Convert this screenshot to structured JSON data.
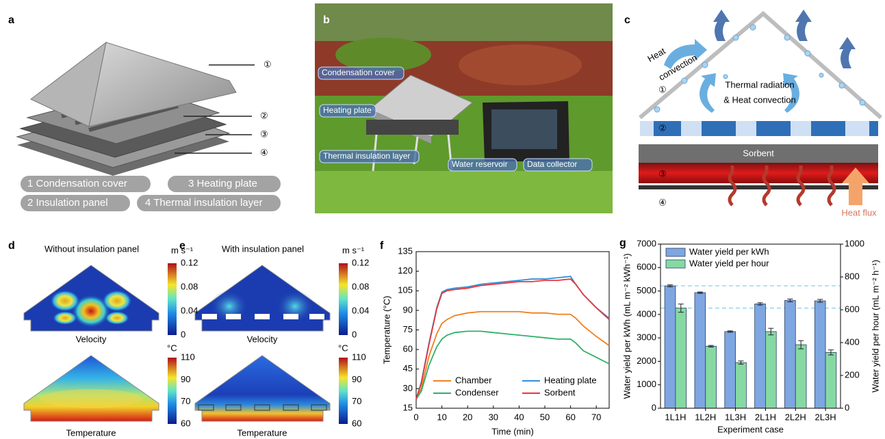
{
  "panel_a": {
    "label": "a",
    "callouts": [
      "①",
      "②",
      "③",
      "④"
    ],
    "legend": [
      "1 Condensation cover",
      "3 Heating plate",
      "2 Insulation panel",
      "4 Thermal insulation layer"
    ]
  },
  "panel_b": {
    "label": "b",
    "annotations": [
      "Condensation cover",
      "Heating plate",
      "Thermal insulation layer",
      "Water reservoir",
      "Data collector"
    ]
  },
  "panel_c": {
    "label": "c",
    "heat_convection": [
      "Heat",
      "convection"
    ],
    "thermal_radiation": [
      "Thermal radiation",
      "& Heat convection"
    ],
    "sorbent": "Sorbent",
    "heat_flux": "Heat flux",
    "layers": [
      "①",
      "②",
      "③",
      "④"
    ]
  },
  "panel_d": {
    "label": "d",
    "title": "Without insulation panel",
    "velocity_label": "Velocity",
    "temperature_label": "Temperature",
    "velocity_unit": "m s⁻¹",
    "temperature_unit": "°C",
    "velocity_ticks": [
      0.12,
      0.08,
      0.04,
      0
    ],
    "temperature_ticks": [
      110,
      90,
      70,
      60
    ]
  },
  "panel_e": {
    "label": "e",
    "title": "With insulation panel",
    "velocity_label": "Velocity",
    "temperature_label": "Temperature",
    "velocity_unit": "m s⁻¹",
    "temperature_unit": "°C",
    "velocity_ticks": [
      0.12,
      0.08,
      0.04,
      0
    ],
    "temperature_ticks": [
      110,
      90,
      70,
      60
    ]
  },
  "chart_data": [
    {
      "type": "line",
      "label": "f",
      "x_label": "Time (min)",
      "y_label": "Temperature (°C)",
      "x": [
        0,
        2,
        5,
        8,
        10,
        12,
        15,
        20,
        25,
        30,
        35,
        40,
        45,
        50,
        55,
        60,
        62,
        65,
        70,
        75
      ],
      "series": [
        {
          "name": "Chamber",
          "color": "#f07f1e",
          "values": [
            22,
            30,
            55,
            72,
            80,
            83,
            86,
            88,
            89,
            89,
            89,
            89,
            88,
            88,
            87,
            87,
            84,
            78,
            70,
            63
          ]
        },
        {
          "name": "Heating plate",
          "color": "#2f8fd8",
          "values": [
            22,
            35,
            65,
            92,
            104,
            106,
            107,
            108,
            110,
            111,
            112,
            113,
            114,
            114,
            115,
            116,
            110,
            102,
            92,
            84
          ]
        },
        {
          "name": "Condenser",
          "color": "#2fb067",
          "values": [
            22,
            28,
            48,
            62,
            68,
            71,
            73,
            74,
            74,
            73,
            72,
            71,
            70,
            69,
            68,
            68,
            65,
            59,
            54,
            49
          ]
        },
        {
          "name": "Sorbent",
          "color": "#e8353a",
          "values": [
            22,
            34,
            64,
            91,
            103,
            105,
            106,
            107,
            109,
            110,
            111,
            112,
            112,
            113,
            113,
            114,
            110,
            102,
            92,
            83
          ]
        }
      ],
      "xlim": [
        0,
        75
      ],
      "xticks": [
        0,
        10,
        20,
        30,
        40,
        50,
        60,
        70
      ],
      "ylim": [
        15,
        135
      ],
      "yticks": [
        15,
        30,
        45,
        60,
        75,
        90,
        105,
        120,
        135
      ],
      "legend": "lower center"
    },
    {
      "type": "bar",
      "label": "g",
      "x_label": "Experiment case",
      "y_label": "Water yield per kWh (mL m⁻² kWh⁻¹)",
      "y2_label": "Water yield per hour (mL m⁻² h⁻¹)",
      "categories": [
        "1L1H",
        "1L2H",
        "1L3H",
        "2L1H",
        "2L2H",
        "2L3H"
      ],
      "series": [
        {
          "name": "Water yield per kWh",
          "color": "#7ea6e0",
          "values": [
            5220,
            4930,
            3270,
            4450,
            4600,
            4580
          ],
          "errors": [
            40,
            30,
            30,
            50,
            60,
            60
          ]
        },
        {
          "name": "Water yield per hour",
          "color": "#86d9a3",
          "axis": "y2",
          "values": [
            610,
            378,
            278,
            467,
            387,
            340
          ],
          "errors": [
            25,
            5,
            10,
            20,
            25,
            15
          ]
        }
      ],
      "ylim": [
        0,
        7000
      ],
      "yticks": [
        0,
        1000,
        2000,
        3000,
        4000,
        5000,
        6000,
        7000
      ],
      "y2lim": [
        0,
        1000
      ],
      "y2ticks": [
        0,
        200,
        400,
        600,
        800,
        1000
      ],
      "legend": "upper left"
    }
  ]
}
